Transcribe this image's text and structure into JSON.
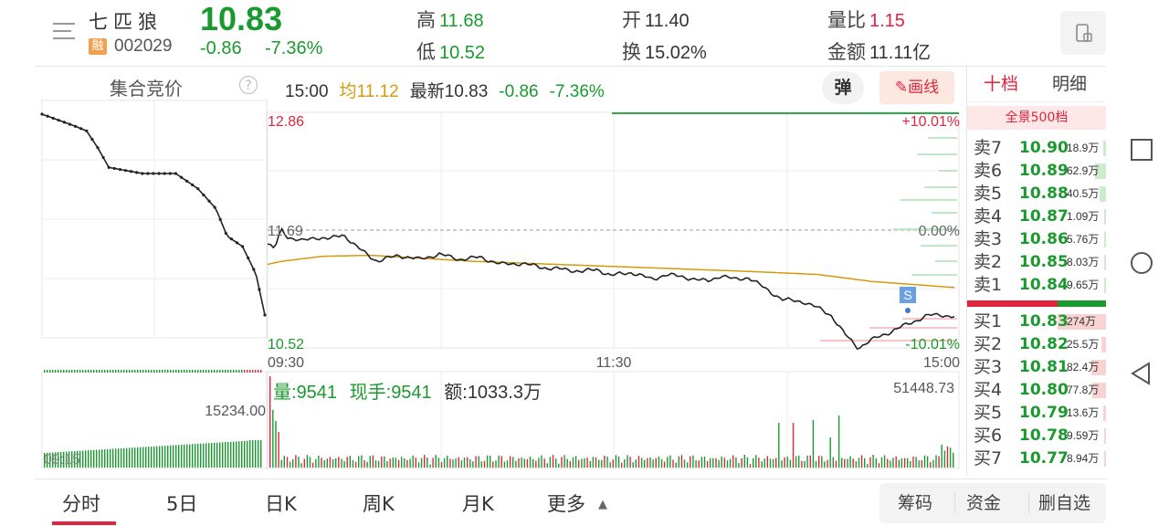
{
  "header": {
    "stock_name": "七匹狼",
    "badge": "融",
    "code": "002029",
    "price": "10.83",
    "change": "-0.86",
    "change_pct": "-7.36%",
    "high_label": "高",
    "high": "11.68",
    "low_label": "低",
    "low": "10.52",
    "open_label": "开",
    "open": "11.40",
    "turnover_label": "换",
    "turnover": "15.02%",
    "vol_ratio_label": "量比",
    "vol_ratio": "1.15",
    "amount_label": "金额",
    "amount": "11.11亿"
  },
  "chart_bar": {
    "auction_title": "集合竞价",
    "help": "?",
    "time": "15:00",
    "avg_label": "均",
    "avg": "11.12",
    "latest_label": "最新",
    "latest": "10.83",
    "change": "-0.86",
    "change_pct": "-7.36%",
    "popup_btn": "弹",
    "draw_btn": "画线"
  },
  "axes": {
    "y_top": "12.86",
    "y_mid": "11.69",
    "y_bot": "10.52",
    "pct_top": "+10.01%",
    "pct_mid": "0.00%",
    "pct_bot": "-10.01%",
    "x_start": "09:30",
    "x_mid": "11:30",
    "x_end": "15:00",
    "auction_time": "09:15",
    "auction_vol": "15234.00",
    "max_vol": "51448.73",
    "s_marker": "S"
  },
  "volume_bar": {
    "vol_label": "量:",
    "vol": "9541",
    "hand_label": "现手:",
    "hand": "9541",
    "amt_label": "额:",
    "amt": "1033.3万"
  },
  "orderbook": {
    "tab_level": "十档",
    "tab_detail": "明细",
    "all_levels": "全景500档",
    "sells": [
      {
        "label": "卖7",
        "price": "10.90",
        "vol": "18.9万",
        "w": 0.06
      },
      {
        "label": "卖6",
        "price": "10.89",
        "vol": "62.9万",
        "w": 0.22
      },
      {
        "label": "卖5",
        "price": "10.88",
        "vol": "40.5万",
        "w": 0.14
      },
      {
        "label": "卖4",
        "price": "10.87",
        "vol": "1.09万",
        "w": 0.0
      },
      {
        "label": "卖3",
        "price": "10.86",
        "vol": "5.76万",
        "w": 0.02
      },
      {
        "label": "卖2",
        "price": "10.85",
        "vol": "8.03万",
        "w": 0.03
      },
      {
        "label": "卖1",
        "price": "10.84",
        "vol": "9.65万",
        "w": 0.03
      }
    ],
    "buys": [
      {
        "label": "买1",
        "price": "10.83",
        "vol": "274万",
        "w": 1.0
      },
      {
        "label": "买2",
        "price": "10.82",
        "vol": "25.5万",
        "w": 0.09
      },
      {
        "label": "买3",
        "price": "10.81",
        "vol": "82.4万",
        "w": 0.3
      },
      {
        "label": "买4",
        "price": "10.80",
        "vol": "77.8万",
        "w": 0.28
      },
      {
        "label": "买5",
        "price": "10.79",
        "vol": "13.6万",
        "w": 0.05
      },
      {
        "label": "买6",
        "price": "10.78",
        "vol": "9.59万",
        "w": 0.03
      },
      {
        "label": "买7",
        "price": "10.77",
        "vol": "8.94万",
        "w": 0.03
      }
    ]
  },
  "bottom_tabs": [
    "分时",
    "5日",
    "日K",
    "周K",
    "月K",
    "更多"
  ],
  "bottom_right": [
    "筹码",
    "资金",
    "删自选"
  ],
  "colors": {
    "up": "#e2233e",
    "down": "#1a9a2e",
    "avg": "#d49a0d"
  }
}
